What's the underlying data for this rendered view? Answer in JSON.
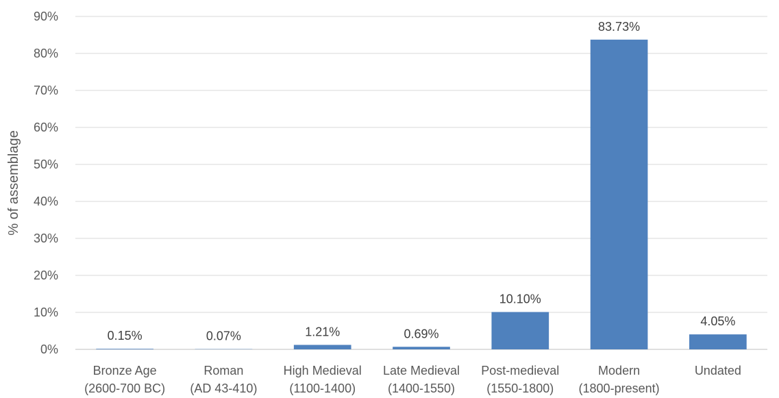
{
  "chart_data": {
    "type": "bar",
    "categories": [
      [
        "Bronze Age",
        "(2600-700 BC)"
      ],
      [
        "Roman",
        "(AD 43-410)"
      ],
      [
        "High Medieval",
        "(1100-1400)"
      ],
      [
        "Late Medieval",
        "(1400-1550)"
      ],
      [
        "Post-medieval",
        "(1550-1800)"
      ],
      [
        "Modern",
        "(1800-present)"
      ],
      [
        "Undated",
        ""
      ]
    ],
    "values": [
      0.15,
      0.07,
      1.21,
      0.69,
      10.1,
      83.73,
      4.05
    ],
    "data_labels": [
      "0.15%",
      "0.07%",
      "1.21%",
      "0.69%",
      "10.10%",
      "83.73%",
      "4.05%"
    ],
    "ylabel": "% of assemblage",
    "ylim": [
      0,
      90
    ],
    "yticks": [
      0,
      10,
      20,
      30,
      40,
      50,
      60,
      70,
      80,
      90
    ],
    "ytick_labels": [
      "0%",
      "10%",
      "20%",
      "30%",
      "40%",
      "50%",
      "60%",
      "70%",
      "80%",
      "90%"
    ],
    "grid": true,
    "legend": "none",
    "bar_color": "#4f81bd"
  }
}
